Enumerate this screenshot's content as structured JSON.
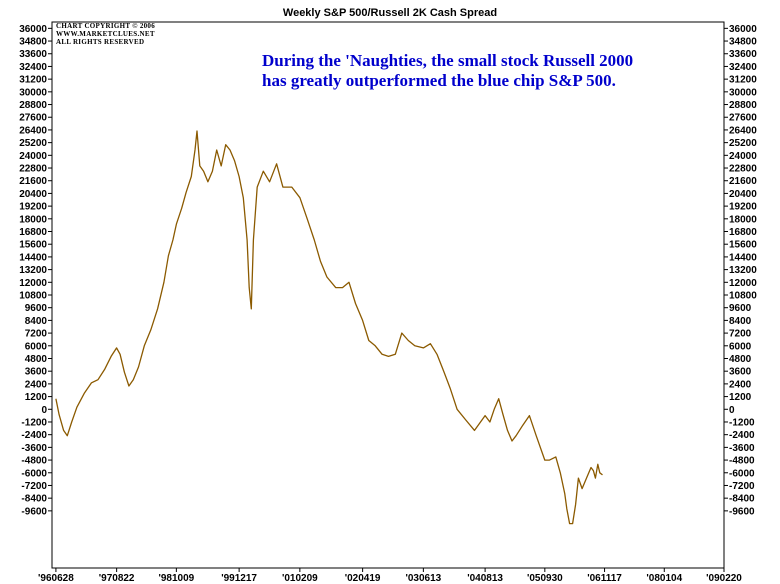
{
  "chart_data": {
    "type": "line",
    "title": "Weekly S&P 500/Russell 2K Cash Spread",
    "copyright": [
      "CHART COPYRIGHT © 2006",
      "WWW.MARKETCLUES.NET",
      "ALL RIGHTS RESERVED"
    ],
    "annotation": [
      "During the 'Naughties, the small stock Russell 2000",
      "has greatly outperformed the blue chip S&P 500."
    ],
    "xlabel": "",
    "ylabel": "",
    "ylim": [
      -15000,
      36600
    ],
    "xlim": [
      "1996-06-01",
      "2009-02-20"
    ],
    "y_ticks": [
      36000,
      34800,
      33600,
      32400,
      31200,
      30000,
      28800,
      27600,
      26400,
      25200,
      24000,
      22800,
      21600,
      20400,
      19200,
      18000,
      16800,
      15600,
      14400,
      13200,
      12000,
      10800,
      9600,
      8400,
      7200,
      6000,
      4800,
      3600,
      2400,
      1200,
      0,
      -1200,
      -2400,
      -3600,
      -4800,
      -6000,
      -7200,
      -8400,
      -9600
    ],
    "x_ticks": [
      {
        "label": "'960628",
        "date": "1996-06-28"
      },
      {
        "label": "'970822",
        "date": "1997-08-22"
      },
      {
        "label": "'981009",
        "date": "1998-10-09"
      },
      {
        "label": "'991217",
        "date": "1999-12-17"
      },
      {
        "label": "'010209",
        "date": "2001-02-09"
      },
      {
        "label": "'020419",
        "date": "2002-04-19"
      },
      {
        "label": "'030613",
        "date": "2003-06-13"
      },
      {
        "label": "'040813",
        "date": "2004-08-13"
      },
      {
        "label": "'050930",
        "date": "2005-09-30"
      },
      {
        "label": "'061117",
        "date": "2006-11-17"
      },
      {
        "label": "'080104",
        "date": "2008-01-04"
      },
      {
        "label": "'090220",
        "date": "2009-02-20"
      }
    ],
    "grid": false,
    "series": [
      {
        "color": "#8b5a00",
        "points": [
          [
            "1996-06-28",
            1000
          ],
          [
            "1996-07-20",
            -500
          ],
          [
            "1996-08-20",
            -2000
          ],
          [
            "1996-09-15",
            -2500
          ],
          [
            "1996-10-15",
            -1200
          ],
          [
            "1996-11-20",
            200
          ],
          [
            "1997-01-10",
            1500
          ],
          [
            "1997-03-01",
            2500
          ],
          [
            "1997-04-15",
            2800
          ],
          [
            "1997-06-01",
            3800
          ],
          [
            "1997-07-15",
            5000
          ],
          [
            "1997-08-22",
            5800
          ],
          [
            "1997-09-15",
            5200
          ],
          [
            "1997-10-15",
            3500
          ],
          [
            "1997-11-15",
            2200
          ],
          [
            "1997-12-15",
            2800
          ],
          [
            "1998-01-20",
            4000
          ],
          [
            "1998-03-01",
            6000
          ],
          [
            "1998-04-15",
            7500
          ],
          [
            "1998-06-01",
            9500
          ],
          [
            "1998-07-15",
            12000
          ],
          [
            "1998-08-15",
            14500
          ],
          [
            "1998-09-15",
            16000
          ],
          [
            "1998-10-09",
            17500
          ],
          [
            "1998-11-15",
            19000
          ],
          [
            "1998-12-15",
            20500
          ],
          [
            "1999-01-20",
            22000
          ],
          [
            "1999-02-15",
            24500
          ],
          [
            "1999-03-01",
            26300
          ],
          [
            "1999-03-20",
            23000
          ],
          [
            "1999-04-15",
            22500
          ],
          [
            "1999-05-15",
            21500
          ],
          [
            "1999-06-15",
            22500
          ],
          [
            "1999-07-15",
            24500
          ],
          [
            "1999-08-15",
            23000
          ],
          [
            "1999-09-15",
            25000
          ],
          [
            "1999-10-15",
            24500
          ],
          [
            "1999-11-15",
            23500
          ],
          [
            "1999-12-17",
            22000
          ],
          [
            "2000-01-15",
            20000
          ],
          [
            "2000-02-10",
            16000
          ],
          [
            "2000-02-25",
            11500
          ],
          [
            "2000-03-10",
            9500
          ],
          [
            "2000-03-25",
            16000
          ],
          [
            "2000-04-20",
            21000
          ],
          [
            "2000-06-01",
            22500
          ],
          [
            "2000-07-15",
            21500
          ],
          [
            "2000-09-01",
            23200
          ],
          [
            "2000-10-15",
            21000
          ],
          [
            "2000-12-15",
            21000
          ],
          [
            "2001-02-09",
            20000
          ],
          [
            "2001-04-01",
            18000
          ],
          [
            "2001-05-20",
            16000
          ],
          [
            "2001-07-01",
            14000
          ],
          [
            "2001-08-15",
            12500
          ],
          [
            "2001-10-15",
            11500
          ],
          [
            "2001-12-01",
            11500
          ],
          [
            "2002-01-15",
            12000
          ],
          [
            "2002-03-01",
            10000
          ],
          [
            "2002-04-19",
            8400
          ],
          [
            "2002-06-01",
            6500
          ],
          [
            "2002-07-15",
            6000
          ],
          [
            "2002-09-01",
            5200
          ],
          [
            "2002-10-15",
            5000
          ],
          [
            "2002-12-01",
            5200
          ],
          [
            "2003-01-15",
            7200
          ],
          [
            "2003-03-01",
            6500
          ],
          [
            "2003-04-15",
            6000
          ],
          [
            "2003-06-13",
            5800
          ],
          [
            "2003-08-01",
            6200
          ],
          [
            "2003-09-15",
            5200
          ],
          [
            "2003-11-01",
            3600
          ],
          [
            "2003-12-15",
            2000
          ],
          [
            "2004-02-01",
            0
          ],
          [
            "2004-04-01",
            -1000
          ],
          [
            "2004-06-01",
            -2000
          ],
          [
            "2004-08-13",
            -600
          ],
          [
            "2004-09-15",
            -1200
          ],
          [
            "2004-10-15",
            0
          ],
          [
            "2004-11-15",
            1000
          ],
          [
            "2004-12-15",
            -500
          ],
          [
            "2005-01-15",
            -2000
          ],
          [
            "2005-02-15",
            -3000
          ],
          [
            "2005-03-15",
            -2500
          ],
          [
            "2005-05-01",
            -1500
          ],
          [
            "2005-06-15",
            -600
          ],
          [
            "2005-08-01",
            -2500
          ],
          [
            "2005-09-30",
            -4800
          ],
          [
            "2005-11-01",
            -4800
          ],
          [
            "2005-12-15",
            -4500
          ],
          [
            "2006-01-15",
            -6000
          ],
          [
            "2006-02-15",
            -8000
          ],
          [
            "2006-03-01",
            -9400
          ],
          [
            "2006-03-20",
            -10800
          ],
          [
            "2006-04-10",
            -10800
          ],
          [
            "2006-05-01",
            -9000
          ],
          [
            "2006-05-20",
            -6500
          ],
          [
            "2006-06-15",
            -7500
          ],
          [
            "2006-07-15",
            -6500
          ],
          [
            "2006-08-15",
            -5500
          ],
          [
            "2006-09-01",
            -5800
          ],
          [
            "2006-09-15",
            -6500
          ],
          [
            "2006-10-01",
            -5200
          ],
          [
            "2006-10-15",
            -6000
          ],
          [
            "2006-11-03",
            -6200
          ]
        ]
      }
    ]
  }
}
